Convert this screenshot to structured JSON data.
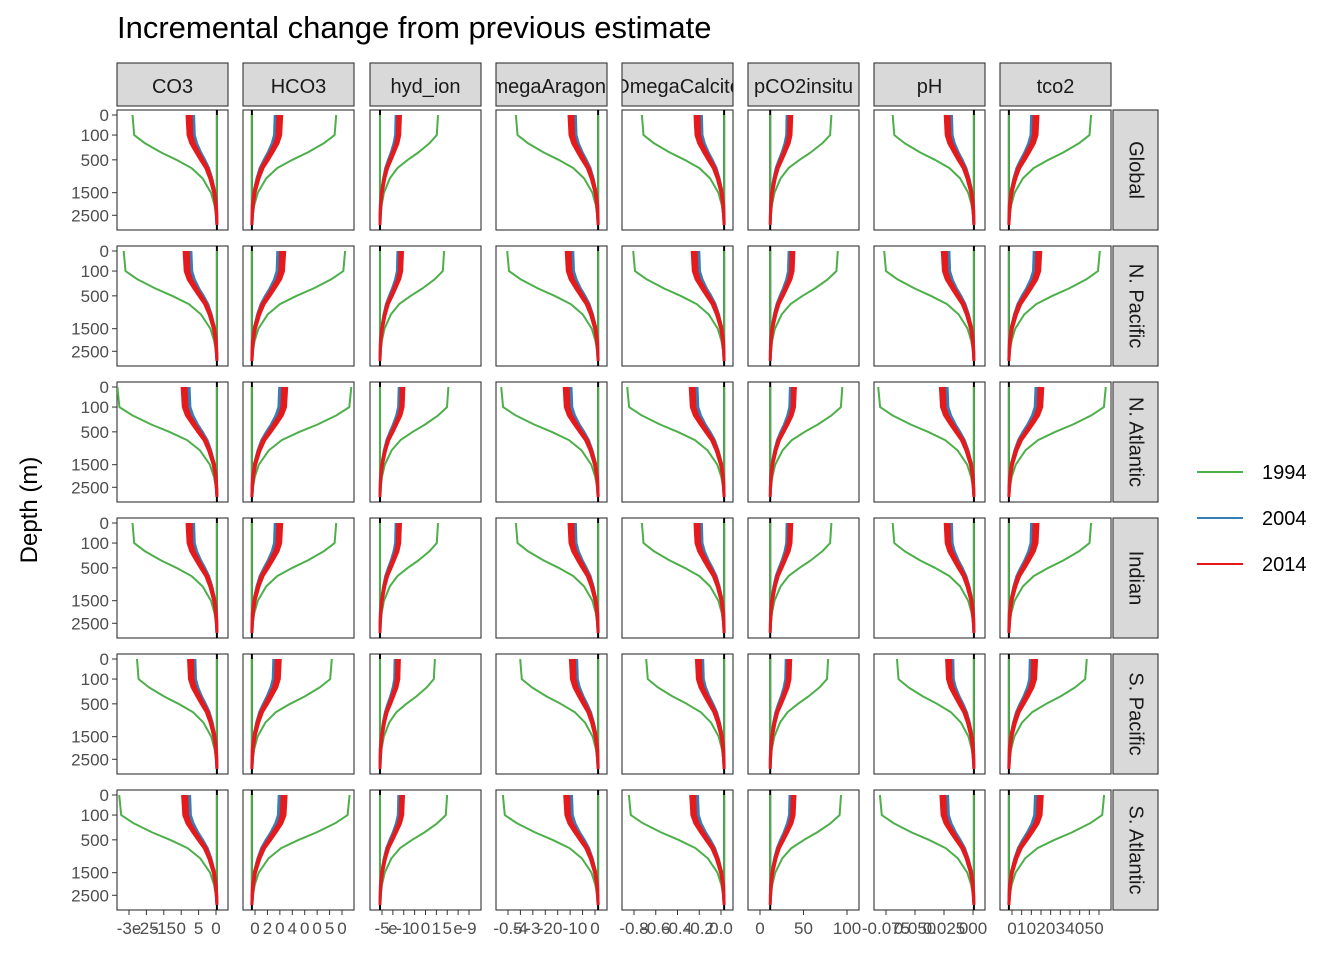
{
  "chart_data": {
    "type": "line",
    "title": "Incremental change from previous estimate",
    "ylabel": "Depth (m)",
    "xlabel": "",
    "y_axis_reversed": true,
    "y_ticks": [
      0,
      100,
      500,
      1500,
      2500
    ],
    "facet_columns": [
      "CO3",
      "HCO3",
      "hyd_ion",
      "OmegaAragonite",
      "OmegaCalcite",
      "pCO2insitu",
      "pH",
      "tco2"
    ],
    "facet_rows": [
      "Global",
      "N. Pacific",
      "N. Atlantic",
      "Indian",
      "S. Pacific",
      "S. Atlantic"
    ],
    "x_tick_labels": [
      [
        "-3e",
        "-25",
        "-15",
        "0",
        "5",
        "0"
      ],
      [
        "0",
        "2",
        "0",
        "4",
        "0",
        "0",
        "5",
        "0"
      ],
      [
        "-5",
        "e",
        "-1",
        "0",
        "0",
        "1",
        "5",
        "e",
        "-9"
      ],
      [
        "-0.5",
        "-4",
        "-3",
        "-2",
        "0",
        "-1",
        "0",
        "0"
      ],
      [
        "-0.8",
        "-0.6",
        "-0.4",
        "-0.2",
        "0.0"
      ],
      [
        "0",
        "50",
        "100"
      ],
      [
        "-0.075",
        "0.050",
        "0.025",
        "000"
      ],
      [
        "0",
        "1",
        "0",
        "2",
        "0",
        "3",
        "4",
        "0",
        "5",
        "0"
      ]
    ],
    "legend": {
      "placement": "right",
      "entries": [
        {
          "name": "1994",
          "color": "#4DAF4A"
        },
        {
          "name": "2004",
          "color": "#377EB8"
        },
        {
          "name": "2014",
          "color": "#E41A1C"
        }
      ]
    },
    "series": [
      {
        "name": "1994",
        "color": "#4DAF4A",
        "depths": [
          0,
          100,
          200,
          350,
          500,
          700,
          1000,
          1500,
          2000,
          2500,
          3000
        ],
        "profile": [
          -1.0,
          -0.98,
          -0.85,
          -0.66,
          -0.48,
          -0.3,
          -0.17,
          -0.07,
          -0.03,
          -0.01,
          0.0
        ]
      },
      {
        "name": "2004",
        "color": "#377EB8",
        "depths": [
          0,
          100,
          200,
          350,
          500,
          700,
          1000,
          1500,
          2000,
          2500,
          3000
        ],
        "profile": [
          -0.3,
          -0.29,
          -0.26,
          -0.21,
          -0.16,
          -0.11,
          -0.07,
          -0.03,
          -0.01,
          -0.004,
          0.0
        ]
      },
      {
        "name": "2014",
        "color": "#E41A1C",
        "depths": [
          0,
          100,
          200,
          350,
          500,
          700,
          1000,
          1500,
          2000,
          2500,
          3000
        ],
        "profile": [
          -0.33,
          -0.32,
          -0.29,
          -0.23,
          -0.18,
          -0.12,
          -0.075,
          -0.03,
          -0.012,
          -0.004,
          0.0
        ]
      }
    ]
  }
}
